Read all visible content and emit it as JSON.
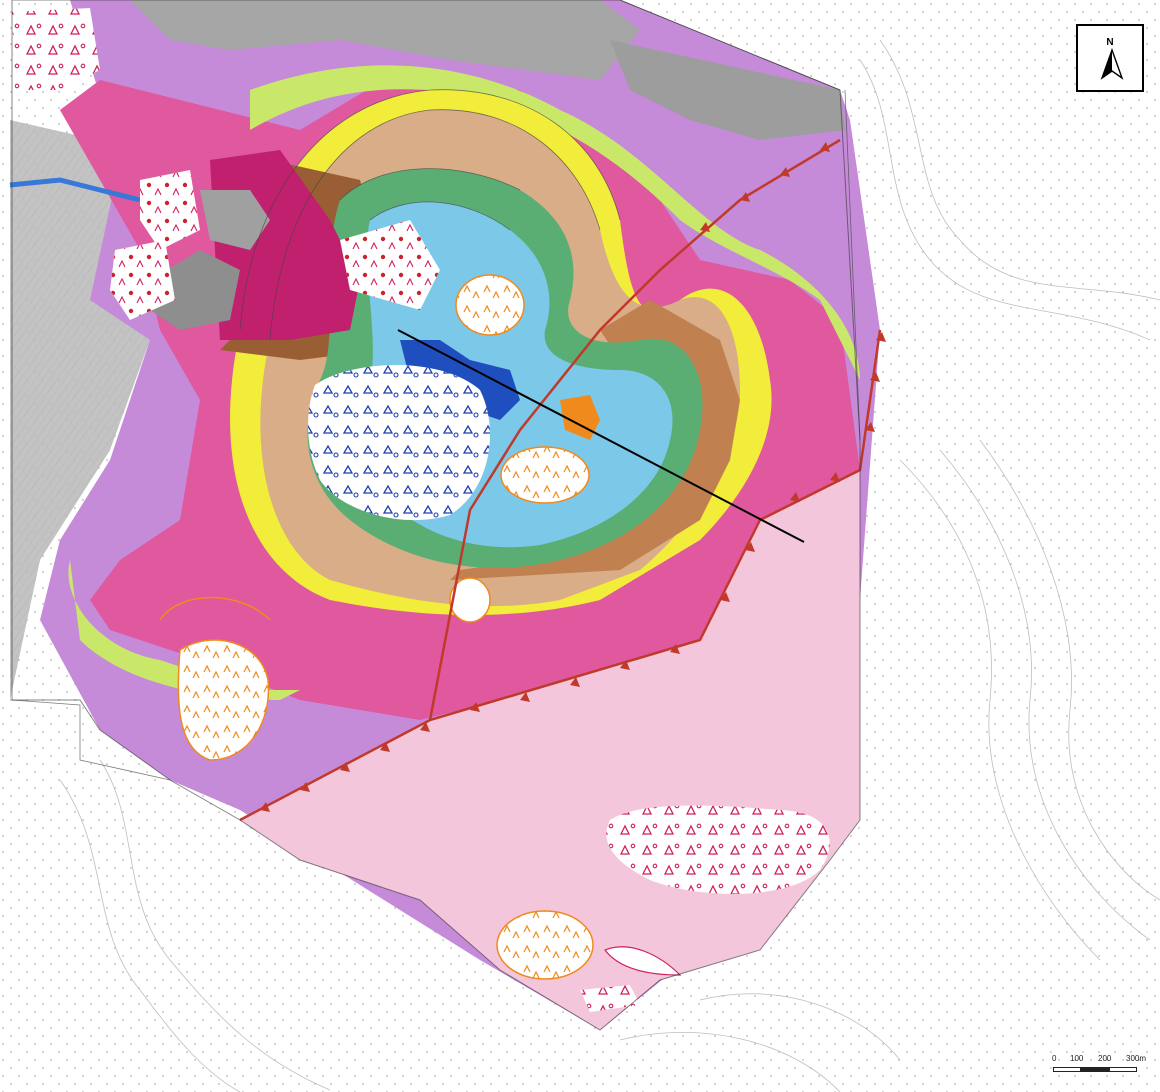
{
  "north_arrow": {
    "label": "N",
    "icon": "north-arrow-icon"
  },
  "scale_bar": {
    "labels": [
      "0",
      "100",
      "200",
      "300m"
    ],
    "unit": "m"
  },
  "colors": {
    "limestone_magenta": "#e0559c",
    "purple_unit": "#c78ad8",
    "lime_band": "#c9e86a",
    "yellow_band": "#f2ec3c",
    "brown_unit": "#c48a5b",
    "tan_unit": "#dcb38a",
    "green_unit": "#5fae74",
    "light_blue_unit": "#7cc8e8",
    "dark_blue_core": "#1f4fbf",
    "pale_pink_unit": "#f3c6dc",
    "grey_unit": "#9a9a9a",
    "fault_red": "#c0392b",
    "section_line": "#000000"
  }
}
